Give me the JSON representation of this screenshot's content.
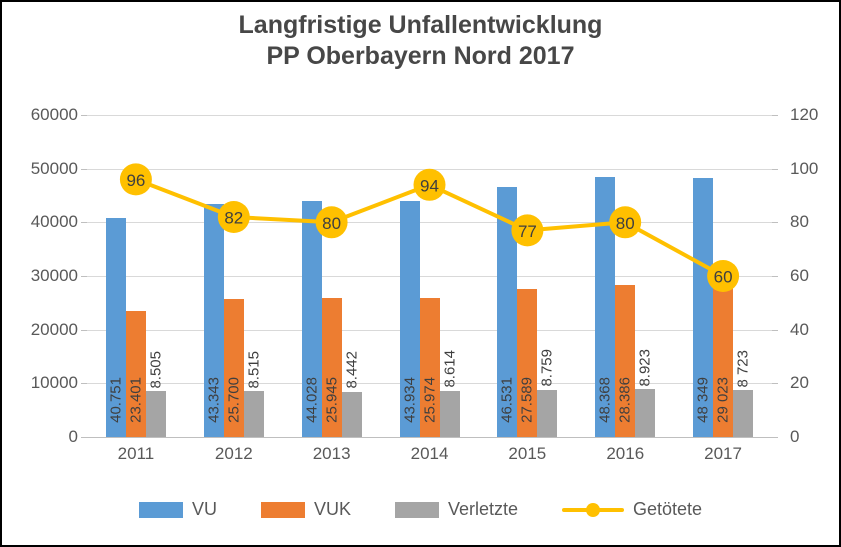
{
  "chart_data": {
    "type": "combo-bar-line",
    "title": "Langfristige Unfallentwicklung PP Oberbayern Nord 2017",
    "title_lines": [
      "Langfristige Unfallentwicklung",
      "PP Oberbayern Nord 2017"
    ],
    "categories": [
      "2011",
      "2012",
      "2013",
      "2014",
      "2015",
      "2016",
      "2017"
    ],
    "series": [
      {
        "name": "VU",
        "type": "bar",
        "axis": "left",
        "color": "#5B9BD5",
        "values": [
          40751,
          43343,
          44028,
          43934,
          46531,
          48368,
          48349
        ],
        "labels": [
          "40.751",
          "43.343",
          "44.028",
          "43.934",
          "46.531",
          "48.368",
          "48 349"
        ]
      },
      {
        "name": "VUK",
        "type": "bar",
        "axis": "left",
        "color": "#ED7D31",
        "values": [
          23401,
          25700,
          25945,
          25974,
          27589,
          28386,
          29023
        ],
        "labels": [
          "23.401",
          "25.700",
          "25.945",
          "25.974",
          "27.589",
          "28.386",
          "29 023"
        ]
      },
      {
        "name": "Verletzte",
        "type": "bar",
        "axis": "left",
        "color": "#A5A5A5",
        "values": [
          8505,
          8515,
          8442,
          8614,
          8759,
          8923,
          8723
        ],
        "labels": [
          "8.505",
          "8.515",
          "8.442",
          "8.614",
          "8.759",
          "8.923",
          "8 723"
        ]
      },
      {
        "name": "Getötete",
        "type": "line",
        "axis": "right",
        "color": "#FFC000",
        "values": [
          96,
          82,
          80,
          94,
          77,
          80,
          60
        ],
        "labels": [
          "96",
          "82",
          "80",
          "94",
          "77",
          "80",
          "60"
        ]
      }
    ],
    "left_axis": {
      "min": 0,
      "max": 60000,
      "ticks": [
        "0",
        "10000",
        "20000",
        "30000",
        "40000",
        "50000",
        "60000"
      ]
    },
    "right_axis": {
      "min": 0,
      "max": 120,
      "ticks": [
        "0",
        "20",
        "40",
        "60",
        "80",
        "100",
        "120"
      ]
    },
    "legend": {
      "position": "bottom",
      "entries": [
        "VU",
        "VUK",
        "Verletzte",
        "Getötete"
      ]
    },
    "grid": true,
    "colors": {
      "grid": "#D9D9D9",
      "axis_line": "#BFBFBF",
      "axis_text": "#595959",
      "title_text": "#474747",
      "bar_label_text": "#3F3F3F",
      "marker_label_text": "#3F3F3F",
      "background": "#FFFFFF",
      "frame": "#000000"
    }
  }
}
